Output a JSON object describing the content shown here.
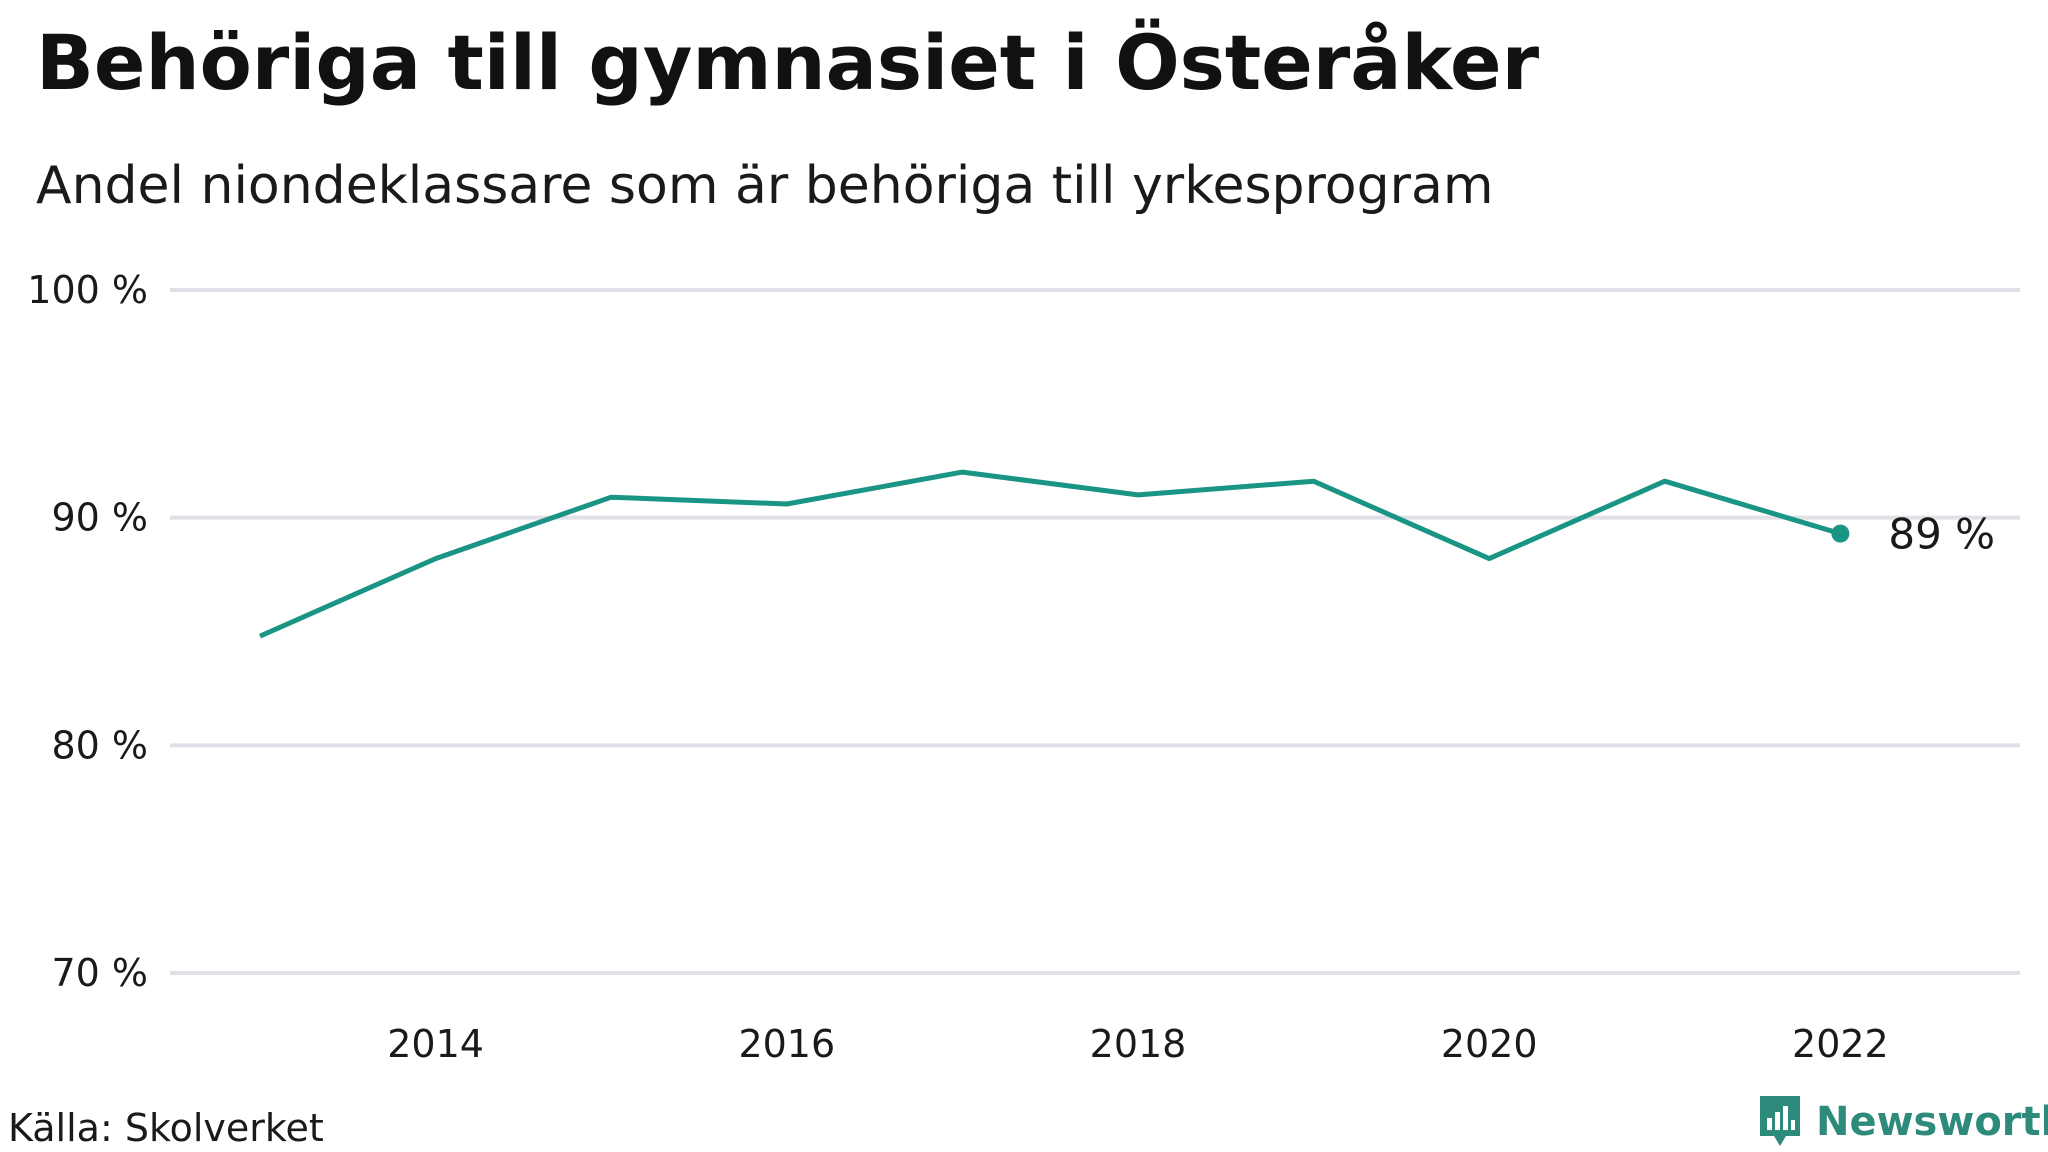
{
  "header": {
    "title": "Behöriga till gymnasiet i Österåker",
    "subtitle": "Andel niondeklassare som är behöriga till yrkesprogram"
  },
  "footer": {
    "source": "Källa: Skolverket",
    "brand": "Newsworthy",
    "brand_icon": "bar-chart-speech-bubble-icon"
  },
  "colors": {
    "line": "#1a9585",
    "grid": "#e0e0e6",
    "brand": "#2e8b7c"
  },
  "chart_data": {
    "type": "line",
    "title": "Behöriga till gymnasiet i Österåker",
    "subtitle": "Andel niondeklassare som är behöriga till yrkesprogram",
    "x": [
      2013,
      2014,
      2015,
      2016,
      2017,
      2018,
      2019,
      2020,
      2021,
      2022
    ],
    "series": [
      {
        "values": [
          84.8,
          88.2,
          90.9,
          90.6,
          92.0,
          91.0,
          91.6,
          88.2,
          91.6,
          89.3
        ]
      }
    ],
    "xticks": [
      "2014",
      "2016",
      "2018",
      "2020",
      "2022"
    ],
    "xtick_values": [
      2014,
      2016,
      2018,
      2020,
      2022
    ],
    "yticks": [
      "70 %",
      "80 %",
      "90 %",
      "100 %"
    ],
    "ytick_values": [
      70,
      80,
      90,
      100
    ],
    "ylim": [
      70,
      100
    ],
    "xlim": [
      2012.5,
      2023.1
    ],
    "grid": true,
    "end_label": "89  %"
  }
}
